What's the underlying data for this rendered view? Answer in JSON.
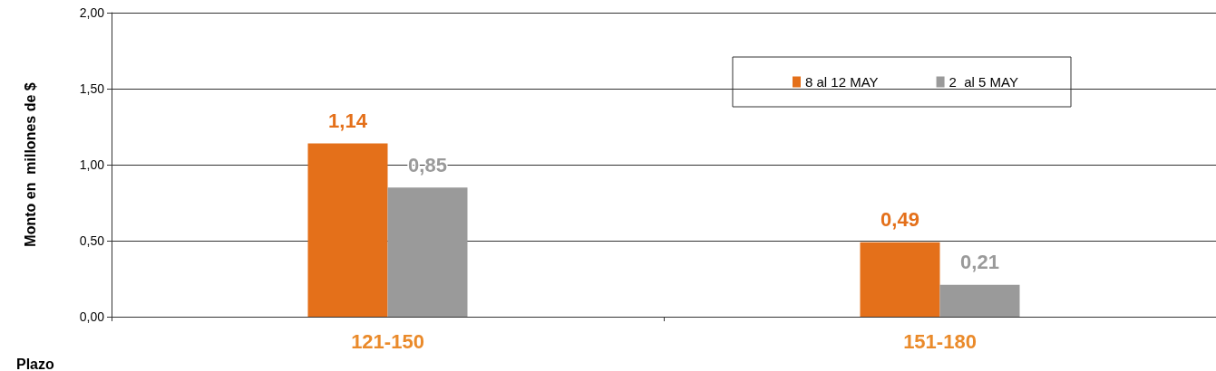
{
  "chart_data": {
    "type": "bar",
    "xlabel": "Plazo",
    "ylabel": "Monto en  millones de $",
    "categories": [
      "121-150",
      "151-180"
    ],
    "series": [
      {
        "name": "8 al 12 MAY",
        "color": "#e4701a",
        "values": [
          1.14,
          0.49
        ],
        "value_labels": [
          "1,14",
          "0,49"
        ]
      },
      {
        "name": "2  al 5 MAY",
        "color": "#9a9a9a",
        "values": [
          0.85,
          0.21
        ],
        "value_labels": [
          "0,85",
          "0,21"
        ]
      }
    ],
    "ylim": [
      0,
      2
    ],
    "yticks": [
      {
        "value": 0,
        "label": "0,00"
      },
      {
        "value": 0.5,
        "label": "0,50"
      },
      {
        "value": 1,
        "label": "1,00"
      },
      {
        "value": 1.5,
        "label": "1,50"
      },
      {
        "value": 2,
        "label": "2,00"
      }
    ],
    "grid": "y",
    "legend": "top right"
  }
}
